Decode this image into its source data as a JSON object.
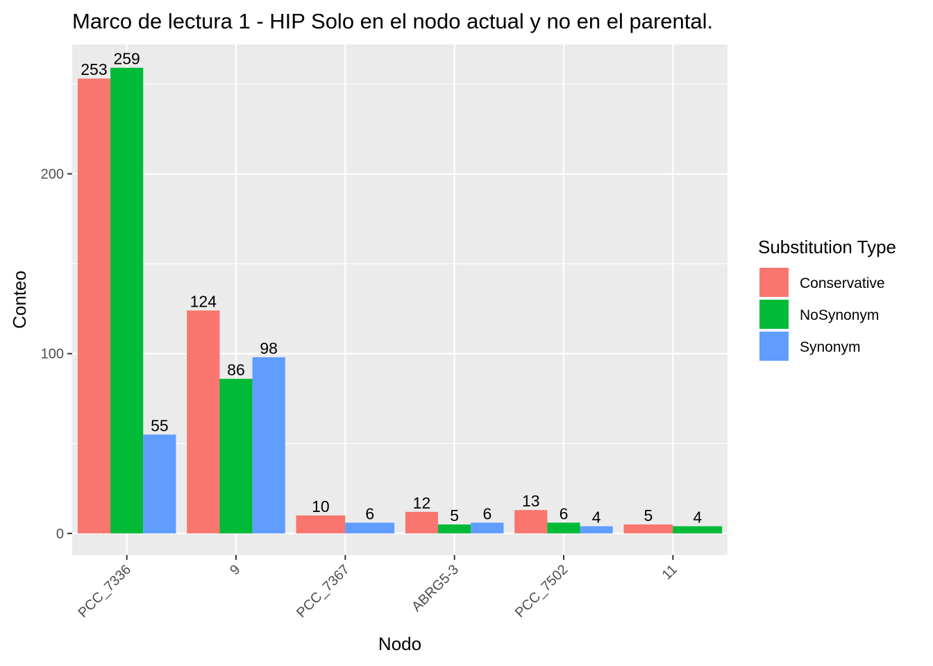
{
  "chart_data": {
    "type": "bar",
    "title": "Marco de lectura 1 - HIP Solo en el nodo actual y no en el parental.",
    "xlabel": "Nodo",
    "ylabel": "Conteo",
    "ylim": [
      -12,
      272
    ],
    "yticks": [
      0,
      100,
      200
    ],
    "grid": true,
    "legend_position": "right",
    "legend_title": "Substitution Type",
    "categories": [
      "PCC_7336",
      "9",
      "PCC_7367",
      "ABRG5-3",
      "PCC_7502",
      "11"
    ],
    "series": [
      {
        "name": "Conservative",
        "color": "#F8766D",
        "values": [
          253,
          124,
          10,
          12,
          13,
          5
        ]
      },
      {
        "name": "NoSynonym",
        "color": "#00BA38",
        "values": [
          259,
          86,
          null,
          5,
          6,
          4
        ]
      },
      {
        "name": "Synonym",
        "color": "#619CFF",
        "values": [
          55,
          98,
          6,
          6,
          4,
          null
        ]
      }
    ]
  }
}
